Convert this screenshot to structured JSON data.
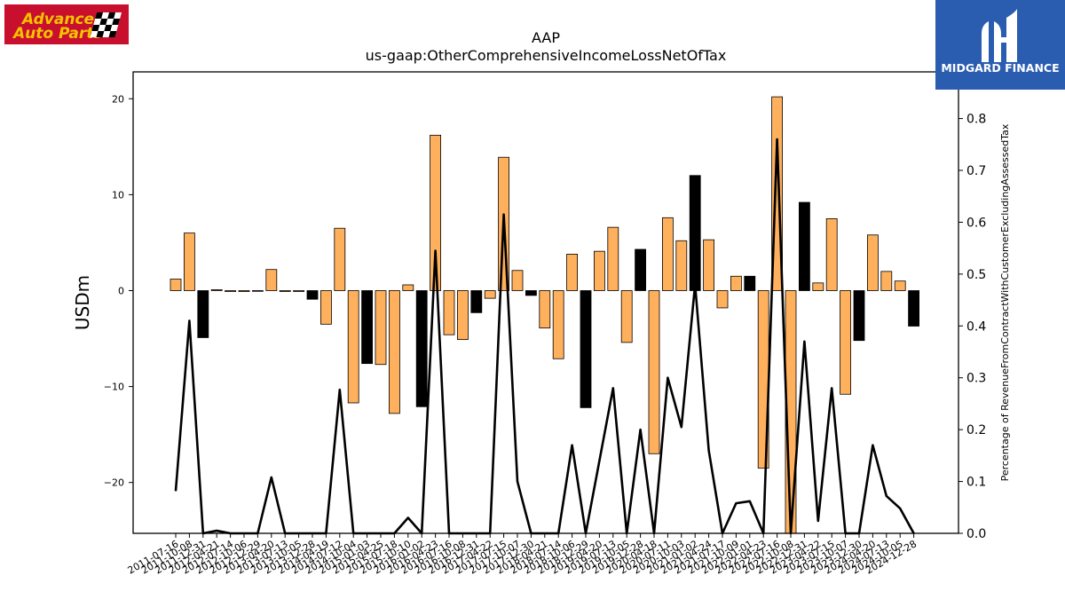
{
  "branding": {
    "left_logo_text": [
      "Advance",
      "Auto Parts"
    ],
    "left_logo_color": "#c8102e",
    "left_logo_text_color": "#f5c400",
    "right_logo_text": "MIDGARD FINANCE",
    "right_logo_color": "#2a5db0"
  },
  "chart_data": {
    "type": "bar+line",
    "title": "AAP",
    "subtitle": "us-gaap:OtherComprehensiveIncomeLossNetOfTax",
    "ylabel": "USDm",
    "y2label": "Percentage of RevenueFromContractWithCustomerExcludingAssessedTax",
    "ylim": [
      -25.3,
      22.8
    ],
    "y2lim": [
      0.0,
      0.89
    ],
    "yticks": [
      -20,
      -10,
      0,
      10,
      20
    ],
    "y2ticks": [
      0.0,
      0.1,
      0.2,
      0.3,
      0.4,
      0.5,
      0.6,
      0.7,
      0.8
    ],
    "bar_colors": {
      "year_end": "#000000",
      "quarter": "#ffb05c"
    },
    "line_color": "#000000",
    "categories": [
      "2011-07-16",
      "2011-10-08",
      "2011-12-31",
      "2012-04-21",
      "2012-07-14",
      "2012-10-06",
      "2012-12-29",
      "2013-04-20",
      "2013-07-13",
      "2013-10-05",
      "2013-12-28",
      "2014-04-19",
      "2014-07-12",
      "2014-10-04",
      "2015-01-03",
      "2015-04-25",
      "2015-07-18",
      "2015-10-10",
      "2016-01-02",
      "2016-04-23",
      "2016-07-16",
      "2016-10-08",
      "2016-12-31",
      "2017-04-22",
      "2017-07-15",
      "2017-10-07",
      "2017-12-30",
      "2018-04-21",
      "2018-07-14",
      "2018-10-06",
      "2018-12-29",
      "2019-04-20",
      "2019-07-13",
      "2019-10-05",
      "2019-12-28",
      "2020-04-18",
      "2020-07-11",
      "2020-10-03",
      "2021-01-02",
      "2021-04-24",
      "2021-07-17",
      "2021-10-09",
      "2022-01-01",
      "2022-04-23",
      "2022-07-16",
      "2022-10-08",
      "2022-12-31",
      "2023-04-22",
      "2023-07-15",
      "2023-10-07",
      "2023-12-30",
      "2024-04-20",
      "2024-07-13",
      "2024-10-05",
      "2024-12-28"
    ],
    "bar_types": [
      "q",
      "q",
      "y",
      "q",
      "q",
      "q",
      "q",
      "q",
      "q",
      "q",
      "y",
      "q",
      "q",
      "q",
      "y",
      "q",
      "q",
      "q",
      "y",
      "q",
      "q",
      "q",
      "y",
      "q",
      "q",
      "q",
      "y",
      "q",
      "q",
      "q",
      "y",
      "q",
      "q",
      "q",
      "y",
      "q",
      "q",
      "q",
      "y",
      "q",
      "q",
      "q",
      "y",
      "q",
      "q",
      "q",
      "y",
      "q",
      "q",
      "q",
      "y",
      "q",
      "q",
      "q",
      "y"
    ],
    "values": [
      1.2,
      6.0,
      -4.9,
      0.1,
      -0.1,
      -0.1,
      -0.05,
      2.2,
      -0.1,
      -0.1,
      -0.9,
      -3.5,
      6.5,
      -11.7,
      -7.6,
      -7.7,
      -12.8,
      0.6,
      -12.1,
      16.2,
      -4.6,
      -5.1,
      -2.3,
      -0.8,
      13.9,
      2.1,
      -0.5,
      -3.9,
      -7.1,
      3.8,
      -12.2,
      4.1,
      6.6,
      -5.4,
      4.3,
      -17.0,
      7.6,
      5.2,
      12.0,
      5.3,
      -1.8,
      1.5,
      1.5,
      -18.5,
      20.2,
      -26.0,
      9.2,
      0.8,
      7.5,
      -10.8,
      -5.2,
      5.8,
      2.0,
      1.0,
      -3.7
    ],
    "line_values": [
      0.082,
      0.41,
      0.0,
      0.005,
      0.0,
      0.0,
      0.0,
      0.108,
      0.0,
      0.0,
      0.0,
      0.0,
      0.277,
      0.0,
      0.0,
      0.0,
      0.0,
      0.03,
      0.0,
      0.545,
      0.0,
      0.0,
      0.0,
      0.0,
      0.615,
      0.1,
      0.0,
      0.0,
      0.0,
      0.17,
      0.0,
      0.14,
      0.28,
      0.0,
      0.2,
      0.0,
      0.3,
      0.205,
      0.48,
      0.16,
      0.0,
      0.058,
      0.062,
      0.0,
      0.76,
      0.0,
      0.37,
      0.024,
      0.28,
      0.0,
      0.0,
      0.17,
      0.072,
      0.048,
      0.0
    ]
  }
}
